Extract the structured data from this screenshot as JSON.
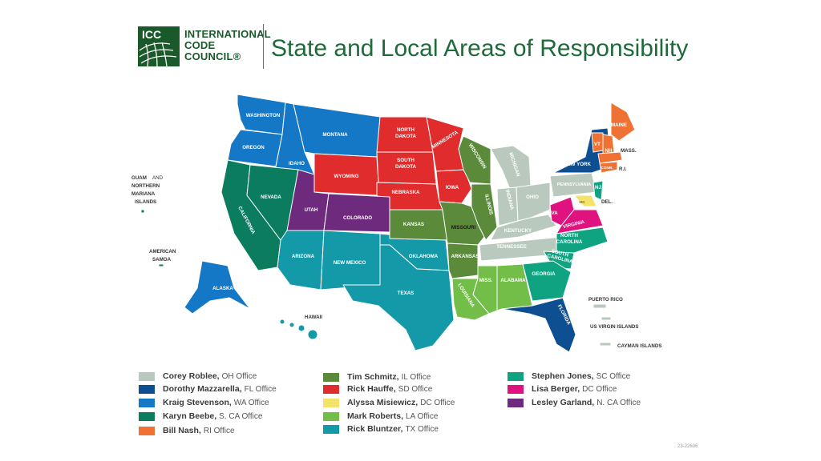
{
  "logo": {
    "abbrev": "ICC",
    "line1": "INTERNATIONAL",
    "line2": "CODE",
    "line3": "COUNCIL®",
    "color": "#1a5a2a"
  },
  "title": "State and Local Areas of Responsibility",
  "colors": {
    "oh": "#b9c9bd",
    "fl": "#0d4f91",
    "wa": "#1578c7",
    "sca": "#0b7d5e",
    "ri": "#ef7133",
    "il": "#5b8a3a",
    "sd": "#e02c2c",
    "dc": "#f3e36b",
    "la": "#72be48",
    "tx": "#1399a8",
    "sc": "#0fa382",
    "dc2": "#e0127f",
    "nca": "#6e2a7d"
  },
  "map": {
    "state_labels": {
      "washington": "WASHINGTON",
      "oregon": "OREGON",
      "california": "CALIFORNIA",
      "nevada": "NEVADA",
      "idaho": "IDAHO",
      "montana": "MONTANA",
      "wyoming": "WYOMING",
      "utah": "UTAH",
      "colorado": "COLORADO",
      "arizona": "ARIZONA",
      "new_mexico": "NEW MEXICO",
      "north_dakota_1": "NORTH",
      "north_dakota_2": "DAKOTA",
      "south_dakota_1": "SOUTH",
      "south_dakota_2": "DAKOTA",
      "nebraska": "NEBRASKA",
      "kansas": "KANSAS",
      "oklahoma": "OKLAHOMA",
      "texas": "TEXAS",
      "minnesota": "MINNESOTA",
      "iowa": "IOWA",
      "missouri": "MISSOURI",
      "arkansas": "ARKANSAS",
      "louisiana": "LOUISIANA",
      "wisconsin": "WISCONSIN",
      "illinois": "ILLINOIS",
      "michigan": "MICHIGAN",
      "indiana": "INDIANA",
      "ohio": "OHIO",
      "kentucky": "KENTUCKY",
      "tennessee": "TENNESSEE",
      "mississippi": "MISS.",
      "alabama": "ALABAMA",
      "georgia": "GEORGIA",
      "florida": "FLORIDA",
      "south_carolina_1": "SOUTH",
      "south_carolina_2": "CAROLINA",
      "north_carolina_1": "NORTH",
      "north_carolina_2": "CAROLINA",
      "virginia": "VIRGINIA",
      "west_virginia": "W.VA",
      "pennsylvania": "PENNSYLVANIA",
      "new_york": "NEW YORK",
      "vermont": "VT",
      "new_hampshire": "NH",
      "maine": "MAINE",
      "massachusetts": "MASS.",
      "rhode_island": "R.I.",
      "connecticut": "CONN.",
      "new_jersey": "NJ",
      "delaware": "DEL.",
      "maryland": "MD",
      "alaska": "ALASKA",
      "hawaii": "HAWAII",
      "guam_1": "GUAM",
      "guam_and": "AND",
      "guam_2": "NORTHERN",
      "guam_3": "MARIANA",
      "guam_4": "ISLANDS",
      "american_samoa_1": "AMERICAN",
      "american_samoa_2": "SAMOA",
      "puerto_rico": "PUERTO RICO",
      "us_virgin_islands": "US VIRGIN ISLANDS",
      "cayman_islands": "CAYMAN ISLANDS"
    }
  },
  "legend": [
    {
      "name": "Corey Roblee,",
      "office": "OH Office",
      "color": "#b9c9bd"
    },
    {
      "name": "Dorothy Mazzarella,",
      "office": "FL Office",
      "color": "#0d4f91"
    },
    {
      "name": "Kraig Stevenson,",
      "office": "WA Office",
      "color": "#1578c7"
    },
    {
      "name": "Karyn Beebe,",
      "office": "S. CA Office",
      "color": "#0b7d5e"
    },
    {
      "name": "Bill Nash,",
      "office": "RI Office",
      "color": "#ef7133"
    },
    {
      "name": "Tim Schmitz,",
      "office": "IL Office",
      "color": "#5b8a3a"
    },
    {
      "name": "Rick Hauffe,",
      "office": "SD Office",
      "color": "#e02c2c"
    },
    {
      "name": "Alyssa Misiewicz,",
      "office": "DC Office",
      "color": "#f3e36b"
    },
    {
      "name": "Mark Roberts,",
      "office": "LA Office",
      "color": "#72be48"
    },
    {
      "name": "Rick Bluntzer,",
      "office": "TX Office",
      "color": "#1399a8"
    },
    {
      "name": "Stephen Jones,",
      "office": "SC Office",
      "color": "#0fa382"
    },
    {
      "name": "Lisa Berger,",
      "office": "DC Office",
      "color": "#e0127f"
    },
    {
      "name": "Lesley Garland,",
      "office": "N. CA Office",
      "color": "#6e2a7d"
    }
  ],
  "footnote": "23-22606"
}
